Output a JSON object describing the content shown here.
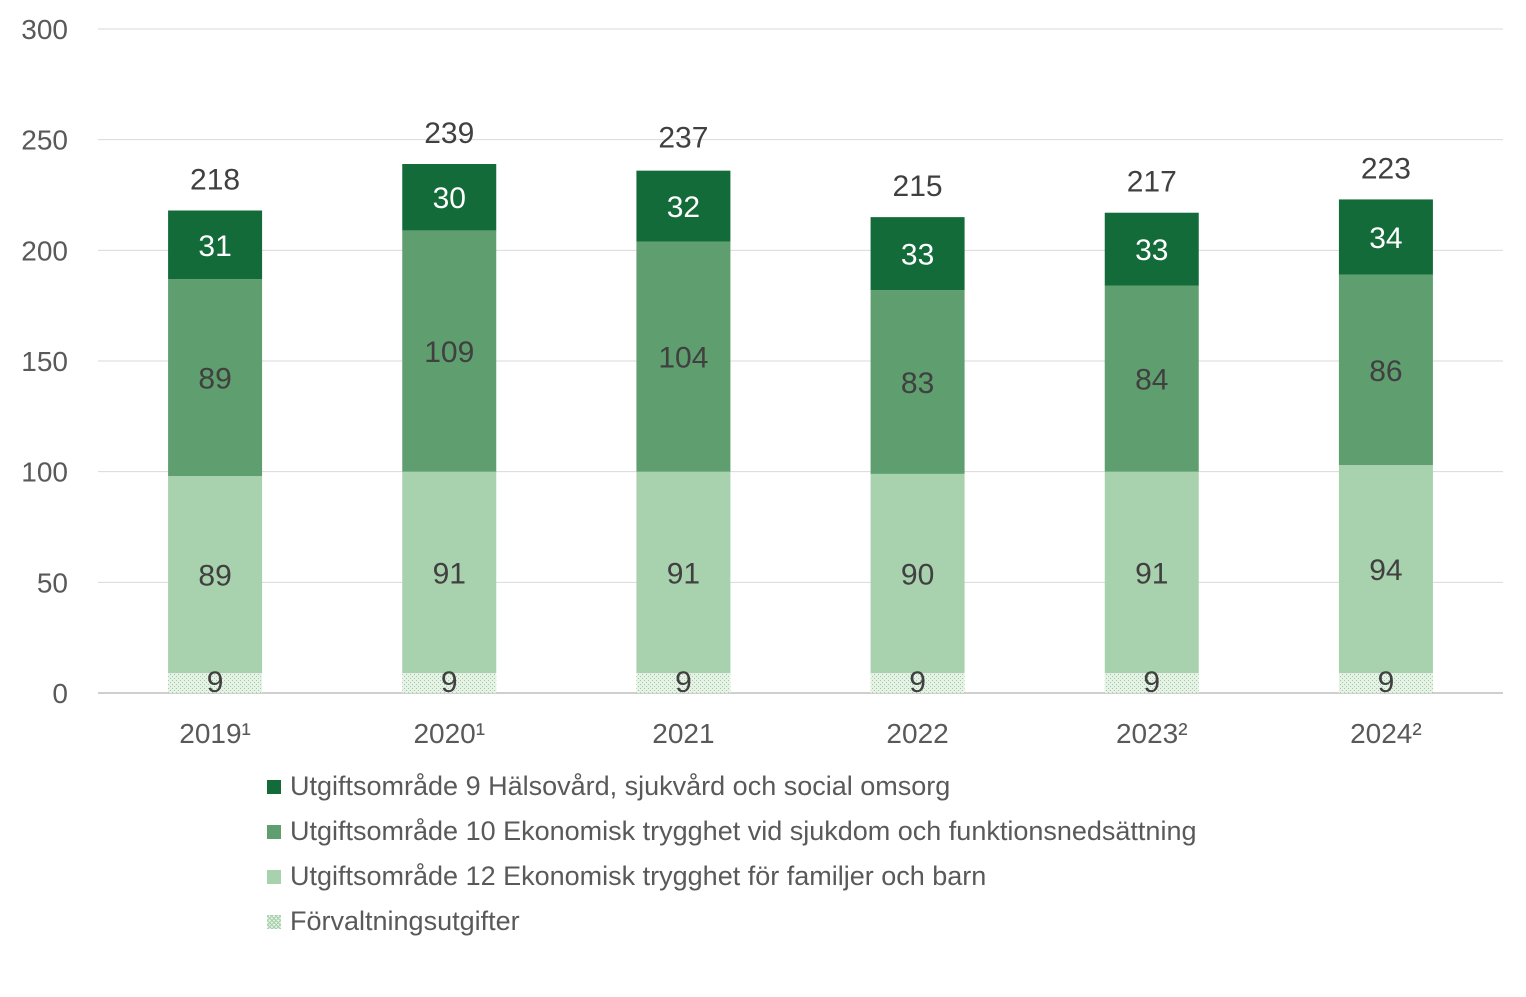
{
  "chart_data": {
    "type": "bar",
    "stacked": true,
    "categories": [
      "2019¹",
      "2020¹",
      "2021",
      "2022",
      "2023²",
      "2024²"
    ],
    "ylim": [
      0,
      300
    ],
    "yticks": [
      "0",
      "50",
      "100",
      "150",
      "200",
      "250",
      "300"
    ],
    "grid": true,
    "legend_position": "bottom",
    "series": [
      {
        "name": "Förvaltningsutgifter",
        "values": [
          9,
          9,
          9,
          9,
          9,
          9
        ],
        "color": "#a8d2ae",
        "pattern": "dotted",
        "label_color": "#404040"
      },
      {
        "name": "Utgiftsområde 12 Ekonomisk trygghet för familjer och barn",
        "values": [
          89,
          91,
          91,
          90,
          91,
          94
        ],
        "color": "#a8d1ae",
        "label_color": "#404040"
      },
      {
        "name": "Utgiftsområde 10 Ekonomisk trygghet vid sjukdom och funktionsnedsättning",
        "values": [
          89,
          109,
          104,
          83,
          84,
          86
        ],
        "color": "#5f9e6e",
        "label_color": "#404040"
      },
      {
        "name": "Utgiftsområde 9 Hälsovård, sjukvård och social omsorg",
        "values": [
          31,
          30,
          32,
          33,
          33,
          34
        ],
        "color": "#146b3a",
        "label_color": "#ffffff"
      }
    ],
    "totals": [
      218,
      239,
      237,
      215,
      217,
      223
    ],
    "legend_order": [
      3,
      2,
      1,
      0
    ]
  }
}
